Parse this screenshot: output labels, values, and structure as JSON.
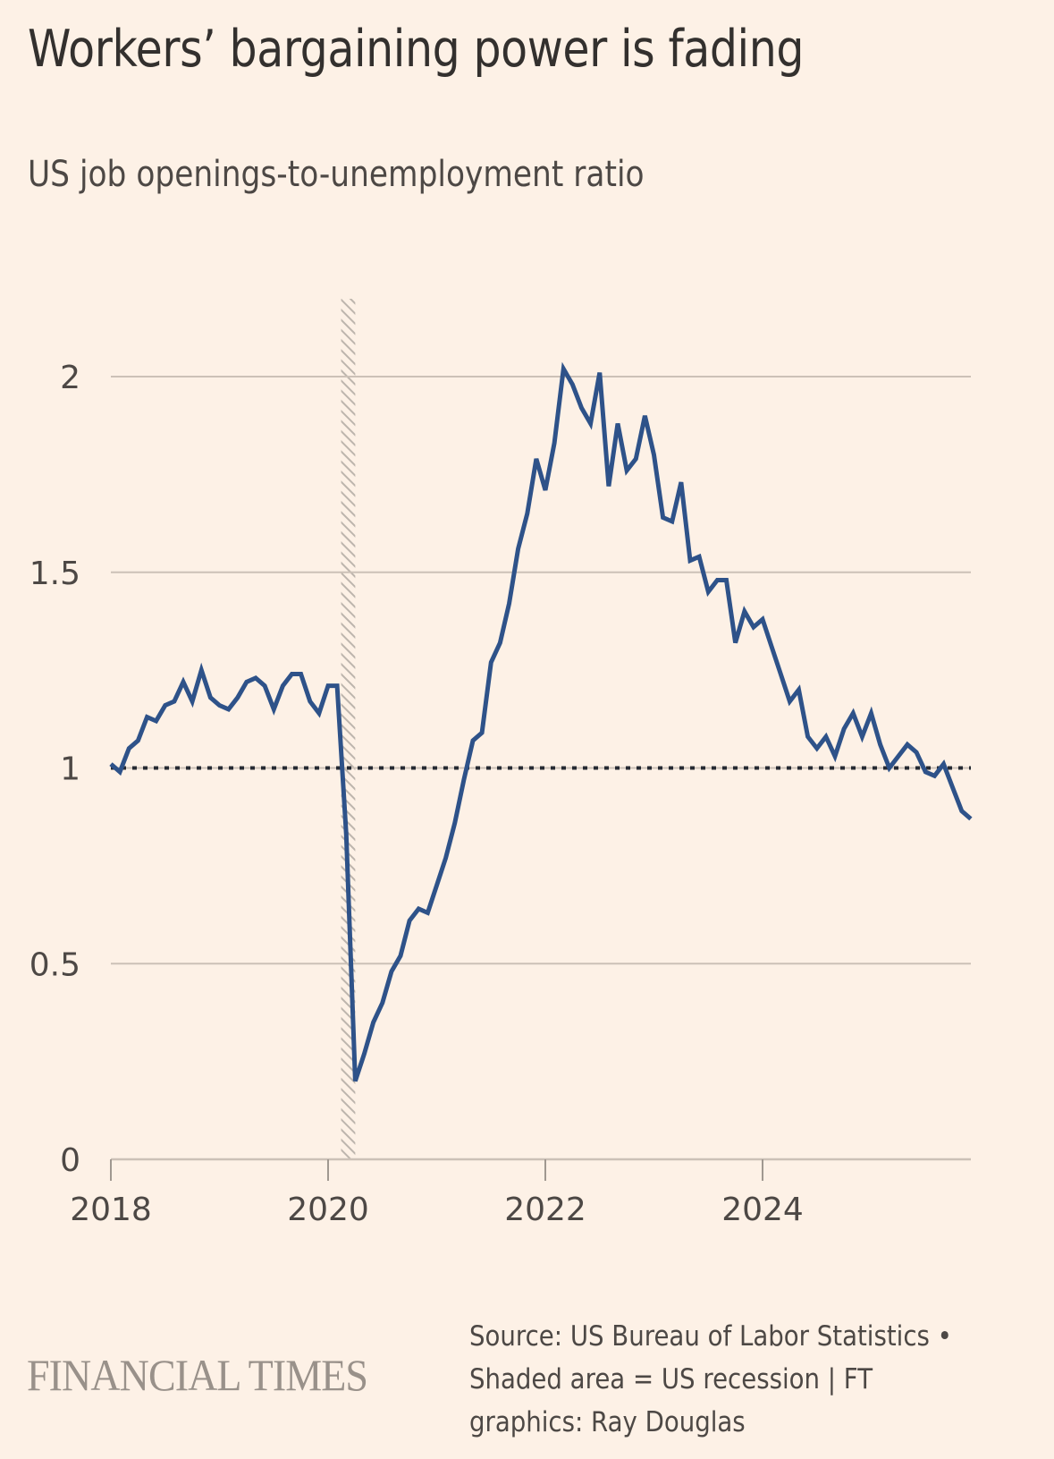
{
  "header": {
    "title": "Workers’ bargaining power is fading",
    "subtitle": "US job openings-to-unemployment ratio"
  },
  "footer": {
    "logo": "FINANCIAL TIMES",
    "source_lines": [
      "Source: US Bureau of Labor Statistics •",
      "Shaded area = US recession | FT",
      "graphics: Ray Douglas"
    ]
  },
  "colors": {
    "background": "#fdf1e6",
    "line": "#2e5289",
    "grid": "#ccc1b7",
    "reference_line": "#262a33",
    "recession_hatch": "#bdb5ad",
    "text": "#33302e"
  },
  "chart_data": {
    "type": "line",
    "title": "Workers’ bargaining power is fading",
    "subtitle": "US job openings-to-unemployment ratio",
    "xlabel": "",
    "ylabel": "",
    "x_start": "2018-01",
    "x_end": "2025-12",
    "frequency": "monthly",
    "xlim": [
      2018.0,
      2025.92
    ],
    "ylim": [
      0,
      2.2
    ],
    "x_ticks": [
      2018,
      2020,
      2022,
      2024
    ],
    "x_tick_labels": [
      "2018",
      "2020",
      "2022",
      "2024"
    ],
    "y_ticks": [
      0,
      0.5,
      1,
      1.5,
      2
    ],
    "y_tick_labels": [
      "0",
      "0.5",
      "1",
      "1.5",
      "2"
    ],
    "grid": true,
    "reference_line": {
      "value": 1,
      "style": "dotted"
    },
    "shaded_regions": [
      {
        "label": "US recession",
        "start": 2020.12,
        "end": 2020.25
      }
    ],
    "legend": "none",
    "series": [
      {
        "name": "US job openings-to-unemployment ratio",
        "values": [
          1.01,
          0.99,
          1.05,
          1.07,
          1.13,
          1.12,
          1.16,
          1.17,
          1.22,
          1.17,
          1.25,
          1.18,
          1.16,
          1.15,
          1.18,
          1.22,
          1.23,
          1.21,
          1.15,
          1.21,
          1.24,
          1.24,
          1.17,
          1.14,
          1.21,
          1.21,
          0.83,
          0.2,
          0.27,
          0.35,
          0.4,
          0.48,
          0.52,
          0.61,
          0.64,
          0.63,
          0.7,
          0.77,
          0.86,
          0.97,
          1.07,
          1.09,
          1.27,
          1.32,
          1.42,
          1.56,
          1.65,
          1.79,
          1.71,
          1.83,
          2.02,
          1.98,
          1.92,
          1.88,
          2.01,
          1.72,
          1.88,
          1.76,
          1.79,
          1.9,
          1.8,
          1.64,
          1.63,
          1.73,
          1.53,
          1.54,
          1.45,
          1.48,
          1.48,
          1.32,
          1.4,
          1.36,
          1.38,
          1.31,
          1.24,
          1.17,
          1.2,
          1.08,
          1.05,
          1.08,
          1.03,
          1.1,
          1.14,
          1.08,
          1.14,
          1.06,
          1.0,
          1.03,
          1.06,
          1.04,
          0.99,
          0.98,
          1.01,
          0.95,
          0.89,
          0.87
        ]
      }
    ]
  }
}
